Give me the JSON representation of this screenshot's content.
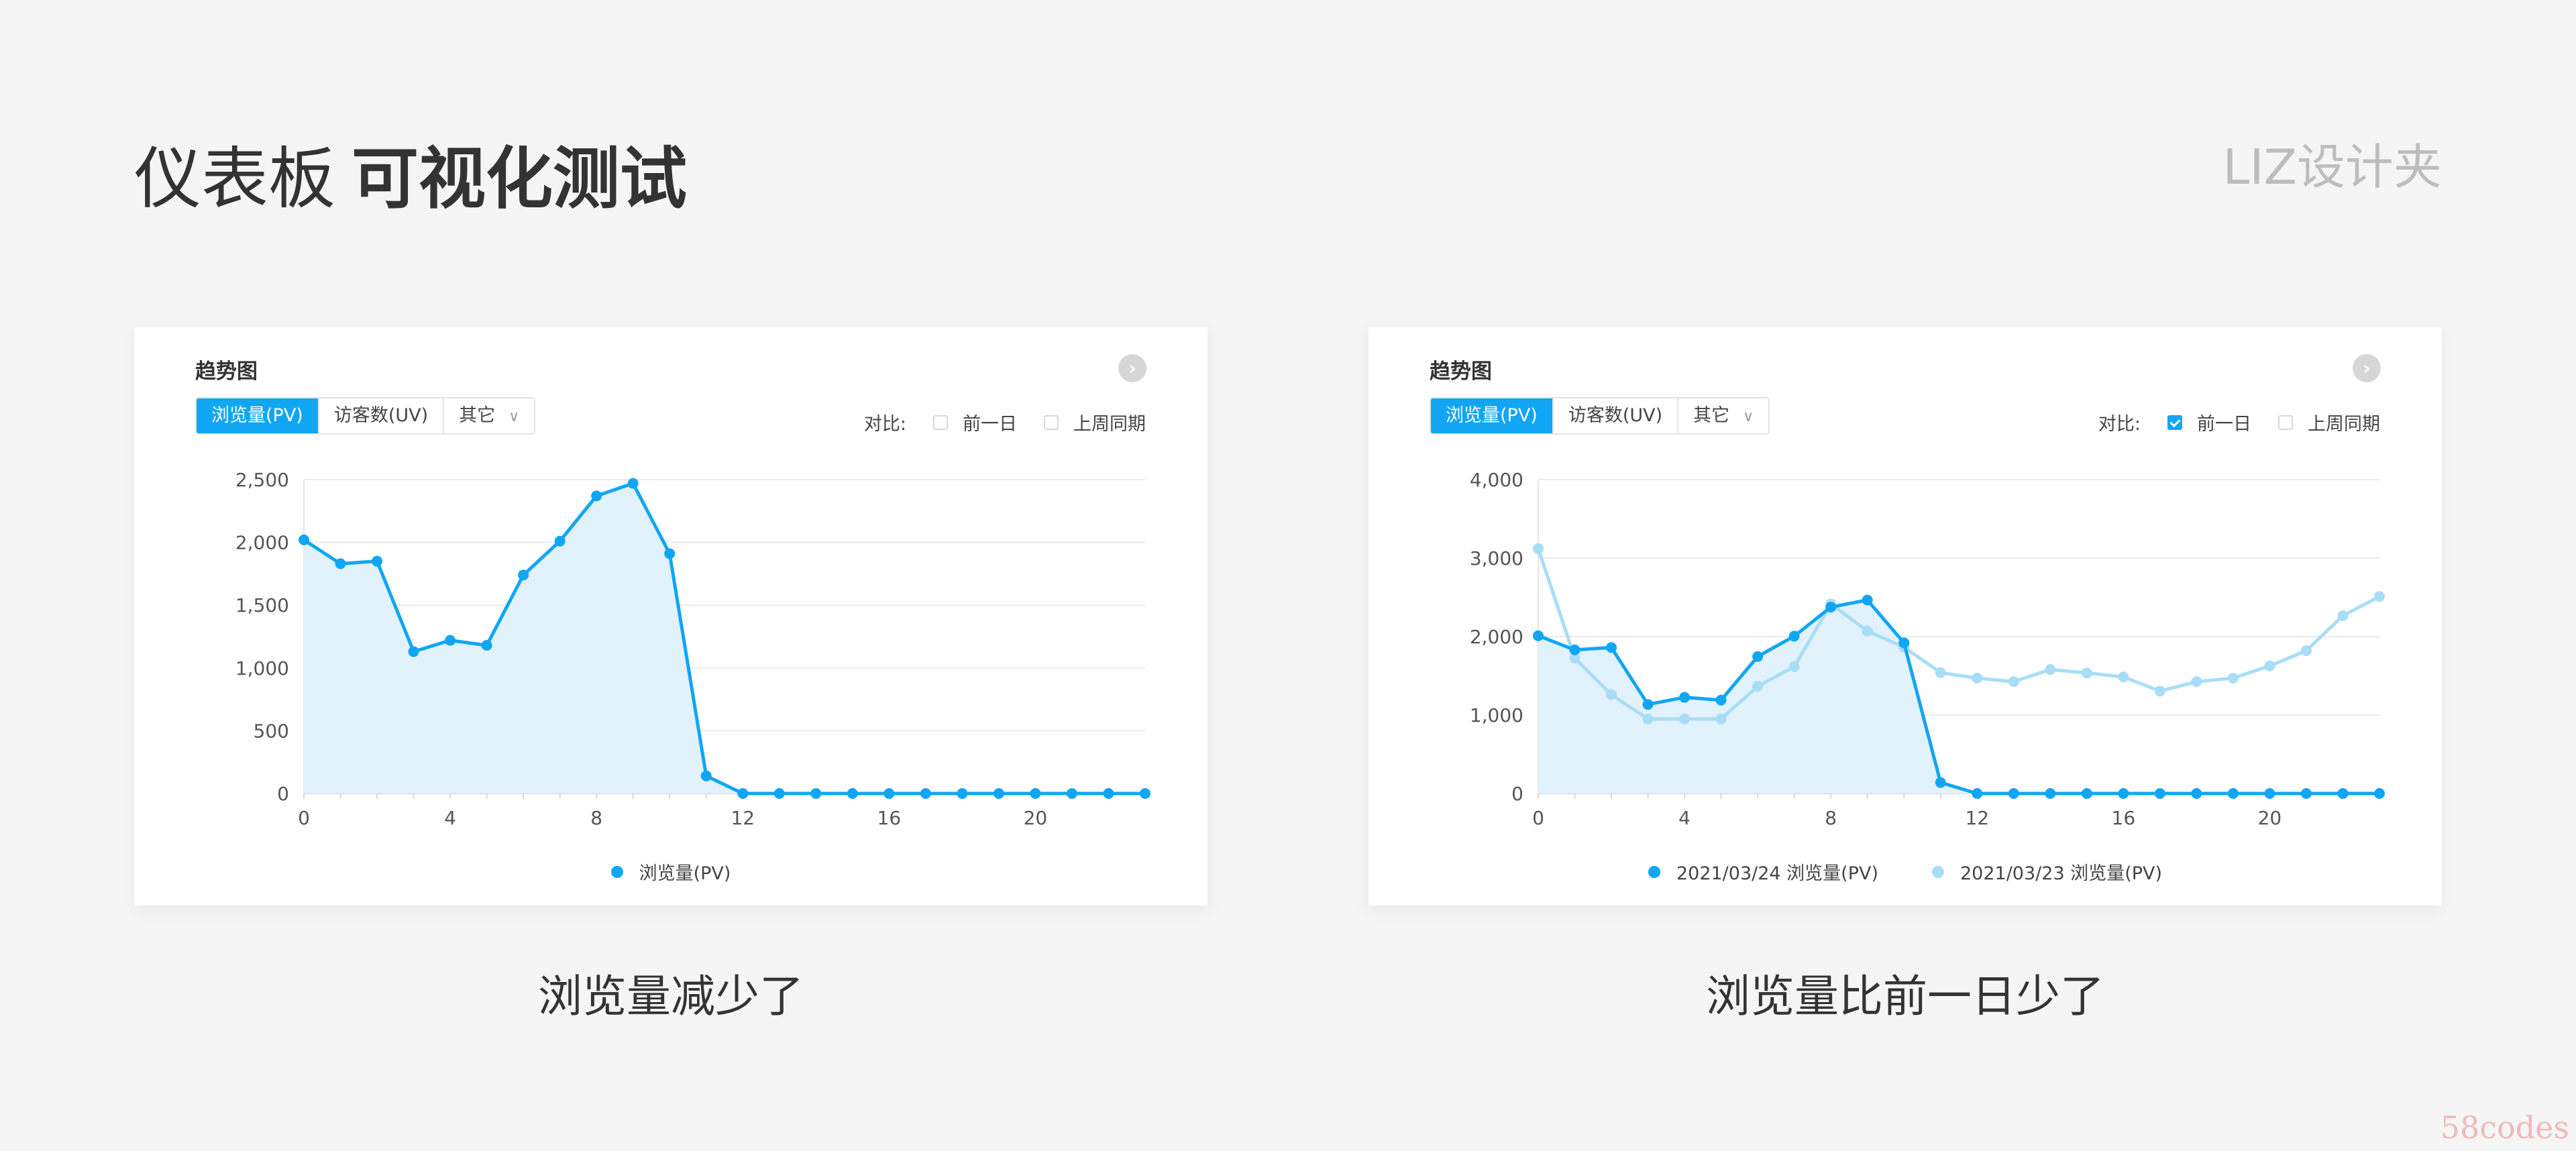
{
  "header": {
    "title_light": "仪表板",
    "title_bold": "可视化测试",
    "brand": "LIZ设计夹"
  },
  "colors": {
    "current": "#10a6f4",
    "previous": "#a8ddf8",
    "fill": "#e2f2fd",
    "grid": "#ececec"
  },
  "cards": [
    {
      "title": "趋势图",
      "more_icon": "chevron-right-circle-icon",
      "tabs": [
        "浏览量(PV)",
        "访客数(UV)",
        "其它"
      ],
      "active_tab": 0,
      "compare_label": "对比:",
      "compare_options": [
        {
          "label": "前一日",
          "checked": false
        },
        {
          "label": "上周同期",
          "checked": false
        }
      ],
      "legend": [
        "浏览量(PV)"
      ],
      "caption": "浏览量减少了"
    },
    {
      "title": "趋势图",
      "more_icon": "chevron-right-circle-icon",
      "tabs": [
        "浏览量(PV)",
        "访客数(UV)",
        "其它"
      ],
      "active_tab": 0,
      "compare_label": "对比:",
      "compare_options": [
        {
          "label": "前一日",
          "checked": true
        },
        {
          "label": "上周同期",
          "checked": false
        }
      ],
      "legend": [
        "2021/03/24 浏览量(PV)",
        "2021/03/23 浏览量(PV)"
      ],
      "caption": "浏览量比前一日少了"
    }
  ],
  "chart_data": [
    {
      "type": "area",
      "x": [
        0,
        1,
        2,
        3,
        4,
        5,
        6,
        7,
        8,
        9,
        10,
        11,
        12,
        13,
        14,
        15,
        16,
        17,
        18,
        19,
        20,
        21,
        22,
        23
      ],
      "xticks": [
        0,
        4,
        8,
        12,
        16,
        20
      ],
      "ylim": [
        0,
        2500
      ],
      "yticks": [
        0,
        500,
        1000,
        1500,
        2000,
        2500
      ],
      "ytick_labels": [
        "0",
        "500",
        "1,000",
        "1,500",
        "2,000",
        "2,500"
      ],
      "grid": true,
      "legend_position": "bottom",
      "series": [
        {
          "name": "浏览量(PV)",
          "style": "current",
          "values": [
            2020,
            1830,
            1850,
            1130,
            1220,
            1180,
            1740,
            2010,
            2370,
            2470,
            1910,
            140,
            0,
            0,
            0,
            0,
            0,
            0,
            0,
            0,
            0,
            0,
            0,
            0
          ]
        }
      ]
    },
    {
      "type": "area",
      "x": [
        0,
        1,
        2,
        3,
        4,
        5,
        6,
        7,
        8,
        9,
        10,
        11,
        12,
        13,
        14,
        15,
        16,
        17,
        18,
        19,
        20,
        21,
        22,
        23
      ],
      "xticks": [
        0,
        4,
        8,
        12,
        16,
        20
      ],
      "ylim": [
        0,
        4000
      ],
      "yticks": [
        0,
        1000,
        2000,
        3000,
        4000
      ],
      "ytick_labels": [
        "0",
        "1,000",
        "2,000",
        "3,000",
        "4,000"
      ],
      "grid": true,
      "legend_position": "bottom",
      "series": [
        {
          "name": "2021/03/24 浏览量(PV)",
          "style": "current",
          "values": [
            2010,
            1830,
            1860,
            1135,
            1225,
            1190,
            1745,
            2005,
            2375,
            2465,
            1920,
            140,
            0,
            0,
            0,
            0,
            0,
            0,
            0,
            0,
            0,
            0,
            0,
            0
          ]
        },
        {
          "name": "2021/03/23 浏览量(PV)",
          "style": "previous",
          "values": [
            3120,
            1725,
            1260,
            950,
            950,
            950,
            1365,
            1615,
            2415,
            2070,
            1865,
            1540,
            1470,
            1425,
            1580,
            1535,
            1485,
            1305,
            1425,
            1470,
            1625,
            1820,
            2265,
            2510
          ]
        }
      ]
    }
  ],
  "watermark": "58codes"
}
